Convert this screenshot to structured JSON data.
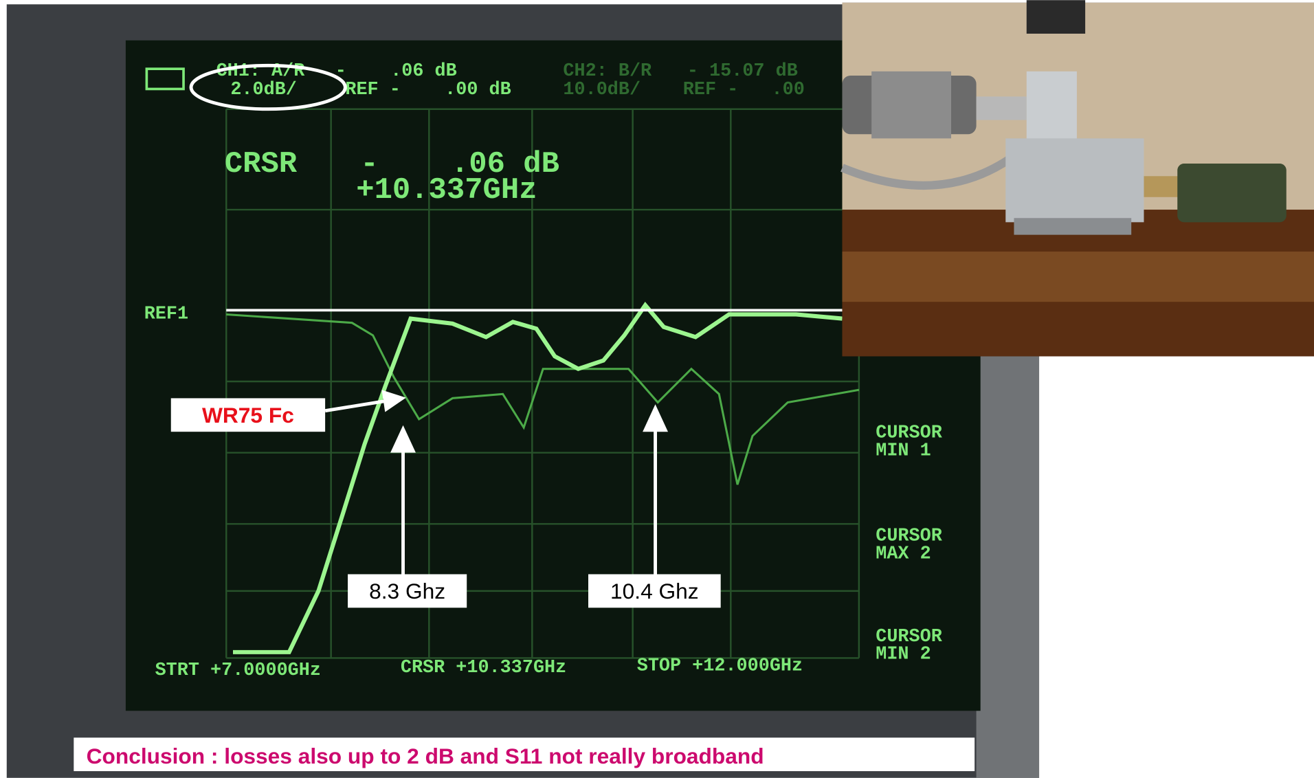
{
  "screen": {
    "ch1": {
      "label": "CH1: A/R",
      "value": "-    .06 dB",
      "scale": "2.0dB/",
      "ref": "REF -    .00 dB"
    },
    "ch2": {
      "label": "CH2: B/R",
      "value": "- 15.07 dB",
      "scale": "10.0dB/",
      "ref": "REF -   .00"
    },
    "cursor_readout": {
      "label": "CRSR",
      "level": "-    .06 dB",
      "frequency": "+10.337GHz"
    },
    "ref_marker": "REF1",
    "softkeys": [
      [
        "CURSOR",
        "MIN 1"
      ],
      [
        "CURSOR",
        "MAX 2"
      ],
      [
        "CURSOR",
        "MIN 2"
      ]
    ],
    "footer": [
      "STRT +7.0000GHz",
      "CRSR +10.337GHz",
      "STOP +12.000GHz"
    ]
  },
  "annotations": {
    "fc": "WR75 Fc",
    "marker1": "8.3 Ghz",
    "marker2": "10.4 Ghz"
  },
  "conclusion": "Conclusion : losses also up to 2 dB and S11 not really broadband"
}
